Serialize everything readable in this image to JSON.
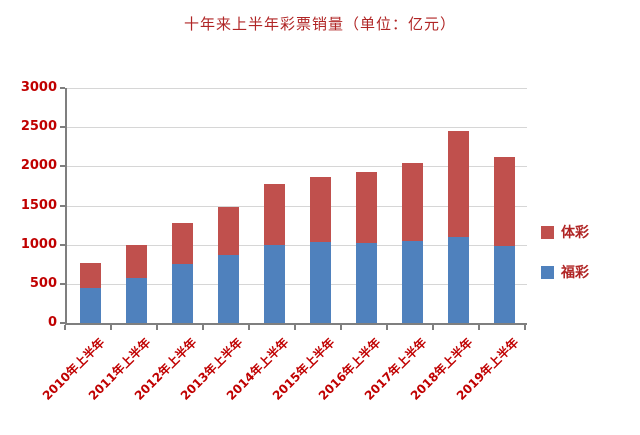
{
  "chart_data": {
    "type": "bar",
    "stacked": true,
    "title": "十年来上半年彩票销量（单位：亿元）",
    "categories": [
      "2010年上半年",
      "2011年上半年",
      "2012年上半年",
      "2013年上半年",
      "2014年上半年",
      "2015年上半年",
      "2016年上半年",
      "2017年上半年",
      "2018年上半年",
      "2019年上半年"
    ],
    "series": [
      {
        "key": "fucai",
        "name": "福彩",
        "color": "#4F81BD",
        "values": [
          450,
          580,
          750,
          870,
          1000,
          1030,
          1020,
          1050,
          1100,
          980
        ]
      },
      {
        "key": "ticai",
        "name": "体彩",
        "color": "#C0504D",
        "values": [
          320,
          420,
          530,
          610,
          780,
          840,
          910,
          990,
          1350,
          1140
        ]
      }
    ],
    "totals": [
      770,
      1000,
      1280,
      1480,
      1780,
      1870,
      1930,
      2040,
      2450,
      2120
    ],
    "xlabel": "",
    "ylabel": "",
    "ylim": [
      0,
      3000
    ],
    "yticks": [
      0,
      500,
      1000,
      1500,
      2000,
      2500,
      3000
    ],
    "grid": true,
    "legend_position": "right",
    "legend_order": [
      "ticai",
      "fucai"
    ]
  },
  "colors": {
    "label_text": "#C00000",
    "title_text": "#B02525",
    "gridline": "#D6D6D6",
    "axis": "#7F7F7F",
    "background": "#FFFFFF"
  }
}
